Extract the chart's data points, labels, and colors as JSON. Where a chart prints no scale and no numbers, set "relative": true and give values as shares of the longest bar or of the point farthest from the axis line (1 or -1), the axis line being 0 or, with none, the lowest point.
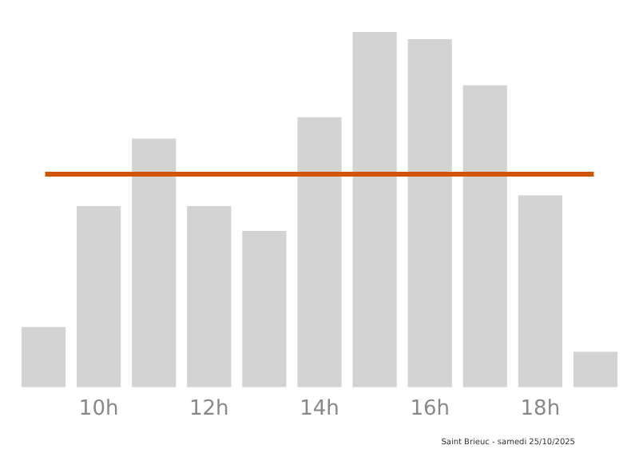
{
  "chart_data": {
    "type": "bar",
    "relative": true,
    "categories": [
      null,
      "10h",
      null,
      "12h",
      null,
      "14h",
      null,
      "16h",
      null,
      "18h",
      null
    ],
    "values": [
      0.17,
      0.51,
      0.7,
      0.51,
      0.44,
      0.76,
      1,
      0.98,
      0.85,
      0.54,
      0.1
    ],
    "color": "#d3d3d3",
    "ref_lines": [
      {
        "axis": "y",
        "value": 0.6,
        "color": "#d35400"
      }
    ],
    "annotations": [
      "Saint Brieuc - samedi 25/10/2025"
    ],
    "grid": false,
    "legend": false
  }
}
